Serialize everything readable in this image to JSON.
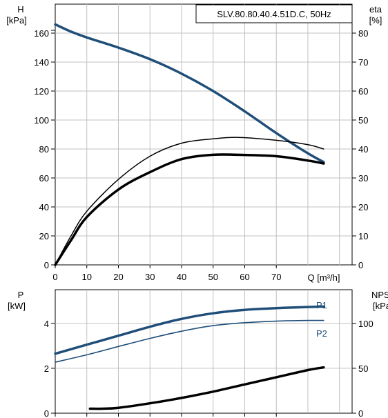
{
  "chart_data": [
    {
      "type": "line",
      "title": "SLV.80.80.40.4.51D.C, 50Hz",
      "x_label": "Q [m³/h]",
      "x_ticks": [
        "0",
        "10",
        "20",
        "30",
        "40",
        "50",
        "60",
        "70"
      ],
      "xlim": [
        0,
        94
      ],
      "left_axis": {
        "label_top": "H",
        "label_unit": "[kPa]",
        "ticks": [
          "0",
          "20",
          "40",
          "60",
          "80",
          "100",
          "120",
          "140",
          "160"
        ],
        "range": [
          0,
          180
        ]
      },
      "right_axis": {
        "label_top": "eta",
        "label_unit": "[%]",
        "ticks": [
          "0",
          "10",
          "20",
          "30",
          "40",
          "50",
          "60",
          "70",
          "80"
        ],
        "range": [
          0,
          90
        ]
      },
      "grid": true,
      "series": [
        {
          "id": "head",
          "axis": "left",
          "color": "#1f4e79",
          "width": 3.5,
          "x": [
            0,
            5,
            10,
            20,
            30,
            40,
            50,
            60,
            70,
            80,
            85
          ],
          "y": [
            166,
            161,
            157,
            150,
            142,
            132,
            120,
            106,
            91,
            77,
            71
          ]
        },
        {
          "id": "eta-thin",
          "axis": "right",
          "color": "#000000",
          "width": 1.5,
          "x": [
            0,
            5,
            10,
            20,
            30,
            40,
            50,
            58,
            70,
            80,
            85
          ],
          "y": [
            0,
            10,
            18.5,
            29.5,
            37.5,
            42,
            43.5,
            44,
            43,
            41.5,
            40
          ]
        },
        {
          "id": "eta-bold",
          "axis": "right",
          "color": "#000000",
          "width": 3.5,
          "x": [
            0,
            5,
            10,
            20,
            30,
            40,
            50,
            58,
            70,
            80,
            85
          ],
          "y": [
            0,
            8.5,
            16.5,
            26,
            32,
            36.5,
            38,
            38,
            37.5,
            36,
            35
          ]
        }
      ]
    },
    {
      "type": "line",
      "xlim": [
        0,
        94
      ],
      "left_axis": {
        "label_top": "P",
        "label_unit": "[kW]",
        "ticks": [
          "0",
          "2",
          "4"
        ],
        "range": [
          0,
          5.5
        ]
      },
      "right_axis": {
        "label_top": "NPSH",
        "label_unit": "[kPa]",
        "ticks": [
          "0",
          "50",
          "100"
        ],
        "range": [
          0,
          137.5
        ]
      },
      "grid": true,
      "series": [
        {
          "id": "P1",
          "name": "P1",
          "axis": "left",
          "color": "#1f4e79",
          "width": 3.5,
          "x": [
            0,
            10,
            20,
            30,
            40,
            50,
            60,
            70,
            80,
            85
          ],
          "y": [
            2.65,
            3.05,
            3.45,
            3.85,
            4.2,
            4.45,
            4.6,
            4.68,
            4.73,
            4.75
          ]
        },
        {
          "id": "P2",
          "name": "P2",
          "axis": "left",
          "color": "#1f4e79",
          "width": 1.6,
          "x": [
            0,
            10,
            20,
            30,
            40,
            50,
            60,
            70,
            80,
            85
          ],
          "y": [
            2.27,
            2.6,
            2.97,
            3.33,
            3.65,
            3.9,
            4.03,
            4.1,
            4.13,
            4.13
          ]
        },
        {
          "id": "npsh",
          "axis": "right",
          "color": "#000000",
          "width": 3.5,
          "x": [
            11,
            15,
            20,
            30,
            40,
            50,
            60,
            70,
            80,
            85
          ],
          "y": [
            5,
            5,
            6,
            11,
            17,
            24,
            32,
            40,
            48,
            51
          ]
        }
      ]
    }
  ]
}
